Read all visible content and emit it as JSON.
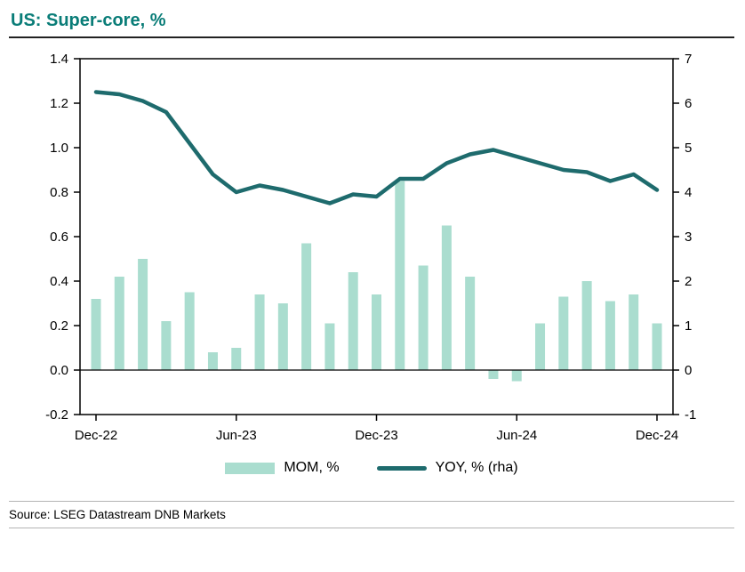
{
  "title": "US: Super-core, %",
  "source": "Source: LSEG Datastream DNB Markets",
  "colors": {
    "accent_teal": "#0a7d78",
    "bar": "#aaddcf",
    "line": "#1e6b6d",
    "axis": "#000000"
  },
  "chart_data": {
    "type": "bar",
    "subtype": "dual-axis bar+line",
    "title": "US: Super-core, %",
    "categories": [
      "Dec-22",
      "Jan-23",
      "Feb-23",
      "Mar-23",
      "Apr-23",
      "May-23",
      "Jun-23",
      "Jul-23",
      "Aug-23",
      "Sep-23",
      "Oct-23",
      "Nov-23",
      "Dec-23",
      "Jan-24",
      "Feb-24",
      "Mar-24",
      "Apr-24",
      "May-24",
      "Jun-24",
      "Jul-24",
      "Aug-24",
      "Sep-24",
      "Oct-24",
      "Nov-24",
      "Dec-24"
    ],
    "x_tick_labels": [
      "Dec-22",
      "Jun-23",
      "Dec-23",
      "Jun-24",
      "Dec-24"
    ],
    "x_tick_indices": [
      0,
      6,
      12,
      18,
      24
    ],
    "left_axis": {
      "min": -0.2,
      "max": 1.4,
      "step": 0.2,
      "ticks": [
        -0.2,
        0.0,
        0.2,
        0.4,
        0.6,
        0.8,
        1.0,
        1.2,
        1.4
      ]
    },
    "right_axis": {
      "min": -1,
      "max": 7,
      "step": 1,
      "ticks": [
        -1,
        0,
        1,
        2,
        3,
        4,
        5,
        6,
        7
      ]
    },
    "grid": false,
    "legend_position": "bottom",
    "series": [
      {
        "name": "MOM, %",
        "type": "bar",
        "axis": "left",
        "values": [
          0.32,
          0.42,
          0.5,
          0.22,
          0.35,
          0.08,
          0.1,
          0.34,
          0.3,
          0.57,
          0.21,
          0.44,
          0.34,
          0.85,
          0.47,
          0.65,
          0.42,
          -0.04,
          -0.05,
          0.21,
          0.33,
          0.4,
          0.31,
          0.34,
          0.21
        ]
      },
      {
        "name": "YOY, % (rha)",
        "type": "line",
        "axis": "right",
        "values": [
          6.25,
          6.2,
          6.05,
          5.8,
          5.1,
          4.4,
          4.0,
          4.15,
          4.05,
          3.9,
          3.75,
          3.95,
          3.9,
          4.3,
          4.3,
          4.65,
          4.85,
          4.95,
          4.8,
          4.65,
          4.5,
          4.45,
          4.25,
          4.4,
          4.05
        ]
      }
    ]
  }
}
